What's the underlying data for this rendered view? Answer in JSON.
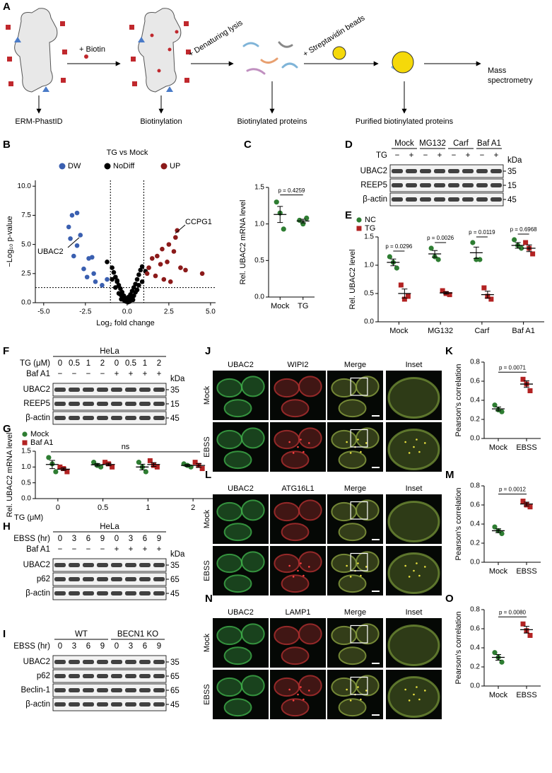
{
  "figure": {
    "panels": [
      "A",
      "B",
      "C",
      "D",
      "E",
      "F",
      "G",
      "H",
      "I",
      "J",
      "K",
      "L",
      "M",
      "N",
      "O"
    ],
    "schematic": {
      "steps": [
        "+ Biotin",
        "+ Denaturing lysis",
        "+ Streptavidin beads"
      ],
      "outputs": [
        "ERM-PhastID",
        "Biotinylation",
        "Biotinylated proteins",
        "Purified biotinylated proteins"
      ],
      "final_lines": [
        "Mass",
        "spectrometry"
      ]
    },
    "blots": {
      "D": {
        "groups": [
          "Mock",
          "MG132",
          "Carf",
          "Baf A1"
        ],
        "unit": "kDa",
        "rows": [
          {
            "label": "TG",
            "cells": [
              "−",
              "+",
              "−",
              "+",
              "−",
              "+",
              "−",
              "+"
            ]
          }
        ],
        "bands": [
          {
            "label": "UBAC2",
            "kda": "35"
          },
          {
            "label": "REEP5",
            "kda": "15"
          },
          {
            "label": "β-actin",
            "kda": "45"
          }
        ]
      },
      "F": {
        "title": "HeLa",
        "unit": "kDa",
        "rows": [
          {
            "label": "TG (μM)",
            "cells": [
              "0",
              "0.5",
              "1",
              "2",
              "0",
              "0.5",
              "1",
              "2"
            ]
          },
          {
            "label": "Baf A1",
            "cells": [
              "−",
              "−",
              "−",
              "−",
              "+",
              "+",
              "+",
              "+"
            ]
          }
        ],
        "bands": [
          {
            "label": "UBAC2",
            "kda": "35"
          },
          {
            "label": "REEP5",
            "kda": "15"
          },
          {
            "label": "β-actin",
            "kda": "45"
          }
        ]
      },
      "H": {
        "title": "HeLa",
        "unit": "kDa",
        "rows": [
          {
            "label": "EBSS (hr)",
            "cells": [
              "0",
              "3",
              "6",
              "9",
              "0",
              "3",
              "6",
              "9"
            ]
          },
          {
            "label": "Baf A1",
            "cells": [
              "−",
              "−",
              "−",
              "−",
              "+",
              "+",
              "+",
              "+"
            ]
          }
        ],
        "bands": [
          {
            "label": "UBAC2",
            "kda": "35"
          },
          {
            "label": "p62",
            "kda": "65"
          },
          {
            "label": "β-actin",
            "kda": "45"
          }
        ]
      },
      "I": {
        "groups": [
          "WT",
          "BECN1 KO"
        ],
        "rows": [
          {
            "label": "EBSS (hr)",
            "cells": [
              "0",
              "3",
              "6",
              "9",
              "0",
              "3",
              "6",
              "9"
            ]
          }
        ],
        "bands": [
          {
            "label": "UBAC2",
            "kda": "35"
          },
          {
            "label": "p62",
            "kda": "65"
          },
          {
            "label": "Beclin-1",
            "kda": "65"
          },
          {
            "label": "β-actin",
            "kda": "45"
          }
        ]
      }
    },
    "imaging": [
      {
        "channels": [
          "UBAC2",
          "WIPI2",
          "Merge",
          "Inset"
        ],
        "rows": [
          "Mock",
          "EBSS"
        ]
      },
      {
        "channels": [
          "UBAC2",
          "ATG16L1",
          "Merge",
          "Inset"
        ],
        "rows": [
          "Mock",
          "EBSS"
        ]
      },
      {
        "channels": [
          "UBAC2",
          "LAMP1",
          "Merge",
          "Inset"
        ],
        "rows": [
          "Mock",
          "EBSS"
        ]
      }
    ]
  },
  "chart_data": [
    {
      "type": "volcano",
      "title": "TG vs Mock",
      "xlabel": "Log₂ fold change",
      "ylabel": "−Log₁₀ p-value",
      "annotations": [
        "UBAC2",
        "CCPG1"
      ],
      "xlim": [
        -5.5,
        5.3
      ],
      "ylim": [
        0,
        10.5
      ],
      "xticks": [
        {
          "value": -5,
          "label": "-5.0"
        },
        -2.5,
        {
          "value": 0,
          "label": "0.0"
        },
        2.5,
        {
          "value": 5,
          "label": "5.0"
        }
      ],
      "yticks": [
        {
          "value": 0,
          "label": "0.0"
        },
        2.5,
        {
          "value": 5,
          "label": "5.0"
        },
        7.5,
        {
          "value": 10,
          "label": "10.0"
        }
      ],
      "cutoff_x": [
        -1,
        1
      ],
      "cutoff_y": 1.3,
      "series": [
        {
          "name": "DW",
          "color": "#3a5fb0",
          "x": [
            -3.3,
            -3.0,
            -3.5,
            -3.4,
            -2.8,
            -3.0,
            -2.3,
            -2.1,
            -2.6,
            -2.4,
            -1.9,
            -1.5,
            -1.2,
            -2.0,
            -3.2
          ],
          "y": [
            7.5,
            7.7,
            6.5,
            5.5,
            5.8,
            4.9,
            3.8,
            3.9,
            2.9,
            2.2,
            1.8,
            1.5,
            2.0,
            2.5,
            4.0
          ]
        },
        {
          "name": "NoDiff",
          "color": "#000000",
          "x": [
            -0.9,
            -0.8,
            -0.7,
            -0.6,
            -0.5,
            -0.4,
            -0.3,
            -0.2,
            -0.1,
            0,
            0.1,
            0.2,
            0.3,
            0.4,
            0.5,
            0.6,
            0.7,
            0.8,
            0.9,
            -0.5,
            -0.3,
            -0.1,
            0.1,
            0.3,
            0.5,
            -0.7,
            -0.2,
            0.2,
            0.7,
            -0.4,
            0,
            0.4,
            -0.6,
            0.6,
            -1.2,
            -0.9,
            0.9,
            1.1,
            -0.15,
            0.15,
            -0.35,
            0.35,
            0.05,
            -0.05,
            0.25
          ],
          "y": [
            3.0,
            2.6,
            2.2,
            1.9,
            1.5,
            1.2,
            0.9,
            0.6,
            0.4,
            0.3,
            0.5,
            0.7,
            1.0,
            1.3,
            1.6,
            2.0,
            2.4,
            2.8,
            3.1,
            0.8,
            0.5,
            0.2,
            0.2,
            0.4,
            0.9,
            1.3,
            0.3,
            0.3,
            1.5,
            0.7,
            0.1,
            0.6,
            1.8,
            1.1,
            3.5,
            2.0,
            1.8,
            2.7,
            0.15,
            0.1,
            0.3,
            0.25,
            0.05,
            0.1,
            0.5
          ]
        },
        {
          "name": "UP",
          "color": "#8b1a1a",
          "x": [
            3.0,
            2.9,
            2.5,
            2.8,
            2.1,
            1.8,
            1.5,
            1.3,
            2.0,
            2.4,
            3.2,
            4.5,
            1.7,
            2.2,
            2.6,
            3.5,
            1.2
          ],
          "y": [
            6.2,
            5.6,
            5.0,
            4.4,
            4.6,
            4.0,
            3.8,
            3.0,
            3.3,
            3.5,
            3.0,
            2.5,
            2.3,
            2.0,
            1.8,
            2.8,
            2.5
          ]
        }
      ]
    },
    {
      "type": "strip",
      "ylabel": "Rel. UBAC2 mRNA level",
      "categories": [
        "Mock",
        "TG"
      ],
      "values": [
        [
          1.3,
          1.15,
          0.93
        ],
        [
          1.05,
          1.0,
          1.08
        ]
      ],
      "means": [
        1.13,
        1.04
      ],
      "errors": [
        0.11,
        0.025
      ],
      "colors": [
        "#2e7d32",
        "#2e7d32"
      ],
      "markers": [
        "circle",
        "circle"
      ],
      "pvalue": "p = 0.4259",
      "ylim": [
        0,
        1.5
      ],
      "yticks": [
        {
          "value": 0,
          "label": "0.0"
        },
        0.5,
        {
          "value": 1,
          "label": "1.0"
        },
        1.5
      ]
    },
    {
      "type": "strip",
      "ylabel": "Rel. UBAC2 level",
      "categories": [
        "Mock",
        "MG132",
        "Carf",
        "Baf A1"
      ],
      "series": [
        {
          "name": "NC",
          "color": "#2e7d32",
          "marker": "circle",
          "values": [
            [
              1.15,
              1.05,
              0.95
            ],
            [
              1.3,
              1.15,
              1.1
            ],
            [
              1.4,
              1.1,
              1.1
            ],
            [
              1.45,
              1.35,
              1.3
            ]
          ],
          "means": [
            1.05,
            1.2,
            1.22,
            1.35
          ],
          "errors": [
            0.06,
            0.06,
            0.1,
            0.05
          ]
        },
        {
          "name": "TG",
          "color": "#b22222",
          "marker": "square",
          "values": [
            [
              0.65,
              0.4,
              0.45
            ],
            [
              0.55,
              0.5,
              0.48
            ],
            [
              0.6,
              0.45,
              0.4
            ],
            [
              1.4,
              1.3,
              1.2
            ]
          ],
          "means": [
            0.5,
            0.51,
            0.48,
            1.3
          ],
          "errors": [
            0.08,
            0.02,
            0.06,
            0.06
          ]
        }
      ],
      "pvalues": [
        "p = 0.0296",
        "p = 0.0026",
        "p = 0.0119",
        "p = 0.6968"
      ],
      "ylim": [
        0,
        1.5
      ],
      "yticks": [
        {
          "value": 0,
          "label": "0.0"
        },
        0.5,
        {
          "value": 1,
          "label": "1.0"
        },
        1.5
      ]
    },
    {
      "type": "strip",
      "ylabel": "Rel. UBAC2 mRNA level",
      "xlabel": "TG (μM)",
      "categories": [
        "0",
        "0.5",
        "1",
        "2"
      ],
      "series": [
        {
          "name": "Mock",
          "color": "#2e7d32",
          "marker": "circle",
          "values": [
            [
              1.3,
              1.1,
              0.85
            ],
            [
              1.15,
              1.05,
              1.0
            ],
            [
              1.15,
              1.0,
              0.85
            ],
            [
              1.1,
              1.05,
              1.0
            ]
          ],
          "means": [
            1.08,
            1.07,
            1.0,
            1.05
          ],
          "errors": [
            0.13,
            0.04,
            0.09,
            0.03
          ]
        },
        {
          "name": "Baf A1",
          "color": "#b22222",
          "marker": "square",
          "values": [
            [
              1.0,
              0.95,
              0.85
            ],
            [
              1.15,
              1.1,
              1.0
            ],
            [
              1.2,
              1.05,
              1.0
            ],
            [
              1.15,
              1.05,
              0.95
            ]
          ],
          "means": [
            0.93,
            1.08,
            1.08,
            1.05
          ],
          "errors": [
            0.04,
            0.04,
            0.06,
            0.06
          ]
        }
      ],
      "annotation": "ns",
      "ylim": [
        0,
        1.5
      ],
      "yticks": [
        {
          "value": 0,
          "label": "0.0"
        },
        0.5,
        {
          "value": 1,
          "label": "1.0"
        },
        1.5
      ]
    },
    {
      "type": "strip",
      "ylabel": "Pearson's correlation",
      "categories": [
        "Mock",
        "EBSS"
      ],
      "values": [
        [
          0.35,
          0.3,
          0.28
        ],
        [
          0.62,
          0.57,
          0.5
        ]
      ],
      "means": [
        0.31,
        0.57
      ],
      "errors": [
        0.02,
        0.035
      ],
      "colors": [
        "#2e7d32",
        "#b22222"
      ],
      "markers": [
        "circle",
        "square"
      ],
      "pvalue": "p = 0.0071",
      "ylim": [
        0,
        0.8
      ],
      "yticks": [
        {
          "value": 0,
          "label": "0.0"
        },
        0.2,
        0.4,
        0.6,
        0.8
      ]
    },
    {
      "type": "strip",
      "ylabel": "Pearson's correlation",
      "categories": [
        "Mock",
        "EBSS"
      ],
      "values": [
        [
          0.37,
          0.33,
          0.3
        ],
        [
          0.64,
          0.6,
          0.58
        ]
      ],
      "means": [
        0.33,
        0.61
      ],
      "errors": [
        0.02,
        0.02
      ],
      "colors": [
        "#2e7d32",
        "#b22222"
      ],
      "markers": [
        "circle",
        "square"
      ],
      "pvalue": "p = 0.0012",
      "ylim": [
        0,
        0.8
      ],
      "yticks": [
        {
          "value": 0,
          "label": "0.0"
        },
        0.2,
        0.4,
        0.6,
        0.8
      ]
    },
    {
      "type": "strip",
      "ylabel": "Pearson's correlation",
      "categories": [
        "Mock",
        "EBSS"
      ],
      "values": [
        [
          0.35,
          0.3,
          0.25
        ],
        [
          0.65,
          0.58,
          0.53
        ]
      ],
      "means": [
        0.3,
        0.59
      ],
      "errors": [
        0.03,
        0.035
      ],
      "colors": [
        "#2e7d32",
        "#b22222"
      ],
      "markers": [
        "circle",
        "square"
      ],
      "pvalue": "p = 0.0080",
      "ylim": [
        0,
        0.8
      ],
      "yticks": [
        {
          "value": 0,
          "label": "0.0"
        },
        0.2,
        0.4,
        0.6,
        0.8
      ]
    }
  ]
}
